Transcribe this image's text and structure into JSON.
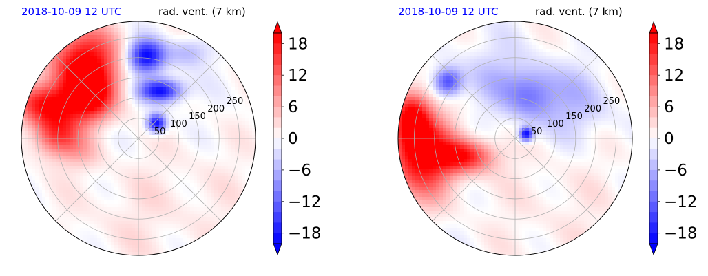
{
  "colors": {
    "title_time": "#0000ff",
    "negative": "#0000ff",
    "positive": "#ff0000",
    "neutral": "#ffffff",
    "grid": "#b0b0b0"
  },
  "chart_data": [
    {
      "type": "heatmap",
      "projection": "polar",
      "title_left": "2018-10-09 12 UTC",
      "title_right": "rad. vent. (7 km)",
      "radial_ticks": [
        "50",
        "100",
        "150",
        "200",
        "250"
      ],
      "radial_tick_values": [
        50,
        100,
        150,
        200,
        250
      ],
      "radius_max": 290,
      "angular_grid_step_deg": 45,
      "grid": true,
      "colorbar": {
        "ticks": [
          "18",
          "12",
          "6",
          "0",
          "−6",
          "−12",
          "−18"
        ],
        "tick_values": [
          18,
          12,
          6,
          0,
          -6,
          -12,
          -18
        ],
        "range": [
          -20,
          20
        ],
        "extend": "both"
      }
    },
    {
      "type": "heatmap",
      "projection": "polar",
      "title_left": "2018-10-09 12 UTC",
      "title_right": "rad. vent. (7 km)",
      "radial_ticks": [
        "50",
        "100",
        "150",
        "200",
        "250"
      ],
      "radial_tick_values": [
        50,
        100,
        150,
        200,
        250
      ],
      "radius_max": 290,
      "angular_grid_step_deg": 45,
      "grid": true,
      "colorbar": {
        "ticks": [
          "18",
          "12",
          "6",
          "0",
          "−6",
          "−12",
          "−18"
        ],
        "tick_values": [
          18,
          12,
          6,
          0,
          -6,
          -12,
          -18
        ],
        "range": [
          -20,
          20
        ],
        "extend": "both"
      }
    }
  ]
}
